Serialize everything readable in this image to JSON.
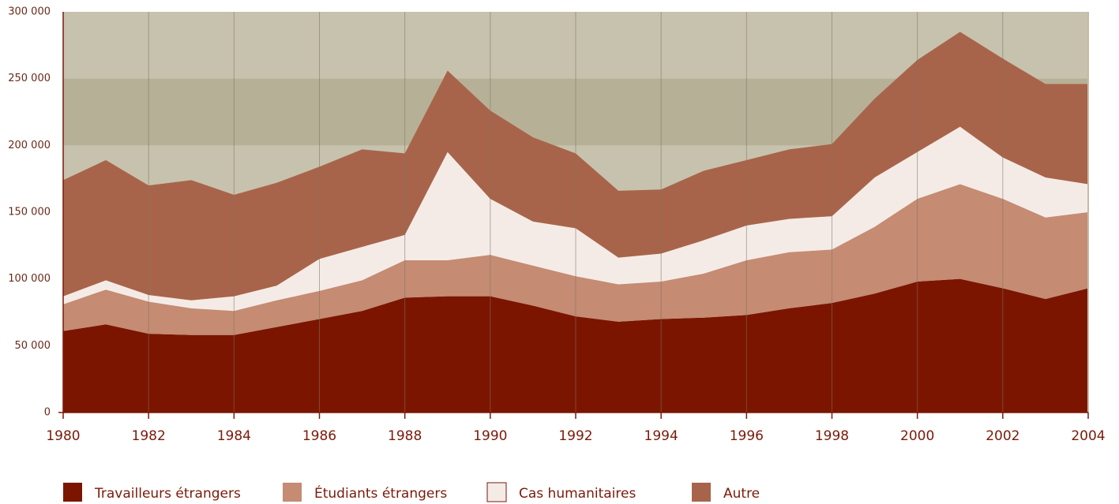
{
  "chart_data": {
    "type": "stacked_area",
    "x": [
      1980,
      1981,
      1982,
      1983,
      1984,
      1985,
      1986,
      1987,
      1988,
      1989,
      1990,
      1991,
      1992,
      1993,
      1994,
      1995,
      1996,
      1997,
      1998,
      1999,
      2000,
      2001,
      2002,
      2003,
      2004
    ],
    "series": [
      {
        "name": "Travailleurs étrangers",
        "color": "#7b1500",
        "values": [
          61000,
          66000,
          59000,
          58000,
          58000,
          64000,
          70000,
          76000,
          86000,
          87000,
          87000,
          80000,
          72000,
          68000,
          70000,
          71000,
          73000,
          78000,
          82000,
          89000,
          98000,
          100000,
          93000,
          85000,
          93000
        ]
      },
      {
        "name": "Étudiants étrangers",
        "color": "#c58b73",
        "values": [
          20000,
          26000,
          24000,
          20000,
          18000,
          20000,
          21000,
          23000,
          28000,
          27000,
          31000,
          30000,
          30000,
          28000,
          28000,
          33000,
          41000,
          42000,
          40000,
          50000,
          62000,
          71000,
          67000,
          61000,
          57000
        ]
      },
      {
        "name": "Cas humanitaires",
        "color": "#f5ebe6",
        "values": [
          6000,
          7000,
          5000,
          6000,
          11000,
          11000,
          24000,
          25000,
          19000,
          81000,
          42000,
          33000,
          36000,
          20000,
          21000,
          25000,
          26000,
          25000,
          25000,
          37000,
          35000,
          43000,
          31000,
          30000,
          21000
        ]
      },
      {
        "name": "Autre",
        "color": "#a8644a",
        "values": [
          87000,
          90000,
          82000,
          90000,
          76000,
          77000,
          69000,
          73000,
          61000,
          61000,
          66000,
          63000,
          56000,
          50000,
          48000,
          52000,
          49000,
          52000,
          54000,
          59000,
          69000,
          71000,
          74000,
          70000,
          75000
        ]
      }
    ],
    "xlim": [
      1980,
      2004
    ],
    "xticks": [
      1980,
      1982,
      1984,
      1986,
      1988,
      1990,
      1992,
      1994,
      1996,
      1998,
      2000,
      2002,
      2004
    ],
    "ylim": [
      0,
      300000
    ],
    "yticks": [
      0,
      {
        "value": 50000,
        "label": "50 000"
      },
      {
        "value": 100000,
        "label": "100 000"
      },
      {
        "value": 150000,
        "label": "150 000"
      },
      {
        "value": 200000,
        "label": "200 000"
      },
      {
        "value": 250000,
        "label": "250 000"
      },
      {
        "value": 300000,
        "label": "300 000"
      }
    ],
    "grid": true,
    "legend": "bottom"
  }
}
